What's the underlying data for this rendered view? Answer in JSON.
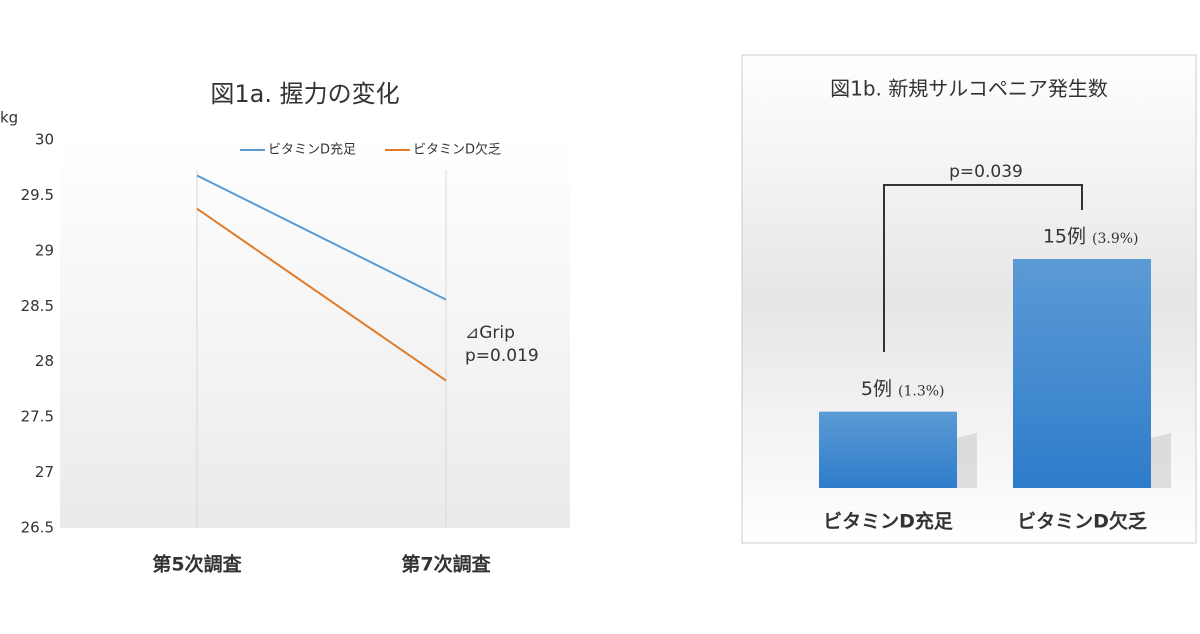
{
  "chart_data": [
    {
      "type": "line",
      "title": "図1a. 握力の変化",
      "y_label": "kg",
      "categories": [
        "第5次調査",
        "第7次調査"
      ],
      "series": [
        {
          "name": "ビタミンD充足",
          "color": "#5b9bd5",
          "values": [
            29.68,
            28.56
          ]
        },
        {
          "name": "ビタミンD欠乏",
          "color": "#e07b2a",
          "values": [
            29.38,
            27.83
          ]
        }
      ],
      "ylim": [
        26.5,
        30
      ],
      "yticks": [
        26.5,
        27,
        27.5,
        28,
        28.5,
        29,
        29.5,
        30
      ],
      "annotations": [
        "⊿Grip",
        "p=0.019"
      ],
      "legend": "top"
    },
    {
      "type": "bar",
      "title": "図1b. 新規サルコペニア発生数",
      "categories": [
        "ビタミンD充足",
        "ビタミンD欠乏"
      ],
      "values": [
        5,
        15
      ],
      "value_labels": [
        "5例",
        "15例"
      ],
      "percent_labels": [
        "(1.3%)",
        "(3.9%)"
      ],
      "color": "#4a8fd4",
      "annotations": [
        "p=0.039"
      ]
    }
  ]
}
